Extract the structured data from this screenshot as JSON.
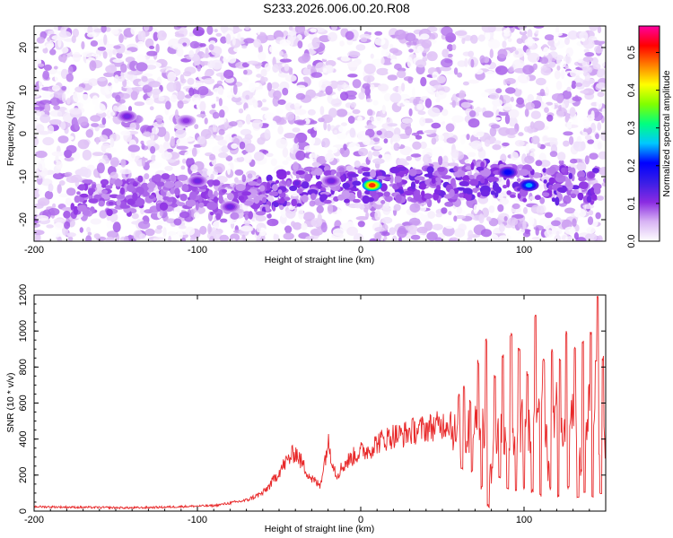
{
  "figure": {
    "title": "S233.2026.006.00.20.R08"
  },
  "chart_data": [
    {
      "type": "heatmap",
      "title": "S233.2026.006.00.20.R08",
      "xlabel": "Height of straight line (km)",
      "ylabel": "Frequency (Hz)",
      "xlim": [
        -200,
        150
      ],
      "ylim": [
        -25,
        25
      ],
      "x_ticks": [
        -200,
        -100,
        0,
        100
      ],
      "x_tick_labels": [
        "-200",
        "-100",
        "0",
        "100"
      ],
      "y_ticks": [
        -20,
        -10,
        0,
        10,
        20
      ],
      "y_tick_labels": [
        "-20",
        "-10",
        "0",
        "10",
        "20"
      ],
      "colorbar": {
        "label": "Normalized spectral amplitude",
        "range": [
          0,
          0.57
        ],
        "ticks": [
          0,
          0.1,
          0.2,
          0.3,
          0.4,
          0.5
        ],
        "tick_labels": [
          "0.0",
          "0.1",
          "0.2",
          "0.3",
          "0.4",
          "0.5"
        ],
        "colormap": [
          "#ffffff",
          "#d8b4f4",
          "#8a2be2",
          "#3a1ee6",
          "#0000ff",
          "#00c8ff",
          "#00ff80",
          "#80ff00",
          "#ffff00",
          "#ff8000",
          "#ff0000",
          "#ff00a0"
        ]
      },
      "background_level": 0.05,
      "signal_track": {
        "description_free": true,
        "points": [
          {
            "x": -150,
            "y": -15
          },
          {
            "x": -100,
            "y": -13
          },
          {
            "x": -80,
            "y": -17
          },
          {
            "x": -50,
            "y": -13
          },
          {
            "x": -20,
            "y": -12
          },
          {
            "x": 0,
            "y": -12
          },
          {
            "x": 20,
            "y": -12
          },
          {
            "x": 50,
            "y": -12
          },
          {
            "x": 80,
            "y": -10
          },
          {
            "x": 100,
            "y": -12
          },
          {
            "x": 130,
            "y": -12
          }
        ],
        "peaks": [
          {
            "x": 7,
            "y": -12,
            "value": 0.5
          },
          {
            "x": 90,
            "y": -9,
            "value": 0.2
          },
          {
            "x": 103,
            "y": -12,
            "value": 0.25
          },
          {
            "x": -100,
            "y": -11,
            "value": 0.12
          },
          {
            "x": -18,
            "y": -11,
            "value": 0.12
          },
          {
            "x": -143,
            "y": 4,
            "value": 0.12
          },
          {
            "x": -107,
            "y": 3,
            "value": 0.1
          },
          {
            "x": -80,
            "y": -17,
            "value": 0.12
          }
        ]
      },
      "grid": false
    },
    {
      "type": "line",
      "xlabel": "Height of straight line (km)",
      "ylabel": "SNR (10 * v/v)",
      "xlim": [
        -200,
        150
      ],
      "ylim": [
        0,
        1200
      ],
      "x_ticks": [
        -200,
        -100,
        0,
        100
      ],
      "x_tick_labels": [
        "-200",
        "-100",
        "0",
        "100"
      ],
      "y_ticks": [
        0,
        200,
        400,
        600,
        800,
        1000,
        1200
      ],
      "y_tick_labels": [
        "0",
        "200",
        "400",
        "600",
        "800",
        "1000",
        "1200"
      ],
      "line_color": "#e8292a",
      "grid": false,
      "series": [
        {
          "x": [
            -200,
            -180,
            -160,
            -140,
            -120,
            -100,
            -90,
            -80,
            -70,
            -60,
            -55,
            -50,
            -45,
            -40,
            -35,
            -30,
            -25,
            -20,
            -15,
            -10,
            -5,
            0,
            5,
            10,
            15,
            20,
            25,
            30,
            35,
            40,
            45,
            50,
            55,
            60,
            65,
            70,
            75,
            80,
            85,
            90,
            95,
            100,
            105,
            110,
            115,
            120,
            125,
            130,
            135,
            140,
            145,
            150
          ],
          "y": [
            25,
            22,
            20,
            18,
            22,
            28,
            30,
            45,
            60,
            100,
            150,
            220,
            280,
            330,
            250,
            180,
            140,
            380,
            200,
            260,
            300,
            330,
            340,
            380,
            400,
            420,
            420,
            440,
            450,
            460,
            470,
            480,
            500,
            360,
            420,
            500,
            480,
            250,
            460,
            420,
            300,
            550,
            380,
            700,
            250,
            650,
            420,
            550,
            300,
            600,
            450,
            400
          ]
        }
      ],
      "spikes": [
        {
          "x": 60,
          "y": 650
        },
        {
          "x": 63,
          "y": 700
        },
        {
          "x": 67,
          "y": 620
        },
        {
          "x": 72,
          "y": 840
        },
        {
          "x": 77,
          "y": 960
        },
        {
          "x": 82,
          "y": 760
        },
        {
          "x": 87,
          "y": 880
        },
        {
          "x": 92,
          "y": 990
        },
        {
          "x": 97,
          "y": 920
        },
        {
          "x": 102,
          "y": 780
        },
        {
          "x": 107,
          "y": 1100
        },
        {
          "x": 112,
          "y": 850
        },
        {
          "x": 117,
          "y": 900
        },
        {
          "x": 122,
          "y": 860
        },
        {
          "x": 126,
          "y": 1000
        },
        {
          "x": 131,
          "y": 930
        },
        {
          "x": 136,
          "y": 960
        },
        {
          "x": 141,
          "y": 1010
        },
        {
          "x": 144,
          "y": 840
        },
        {
          "x": 145,
          "y": 1200
        },
        {
          "x": 148,
          "y": 870
        }
      ],
      "dips": [
        {
          "x": 62,
          "y": 230
        },
        {
          "x": 68,
          "y": 210
        },
        {
          "x": 74,
          "y": 120
        },
        {
          "x": 78,
          "y": 20
        },
        {
          "x": 85,
          "y": 180
        },
        {
          "x": 90,
          "y": 120
        },
        {
          "x": 95,
          "y": 100
        },
        {
          "x": 100,
          "y": 120
        },
        {
          "x": 105,
          "y": 100
        },
        {
          "x": 110,
          "y": 80
        },
        {
          "x": 116,
          "y": 120
        },
        {
          "x": 121,
          "y": 70
        },
        {
          "x": 127,
          "y": 120
        },
        {
          "x": 133,
          "y": 60
        },
        {
          "x": 137,
          "y": 100
        },
        {
          "x": 142,
          "y": 70
        },
        {
          "x": 147,
          "y": 90
        }
      ]
    }
  ]
}
